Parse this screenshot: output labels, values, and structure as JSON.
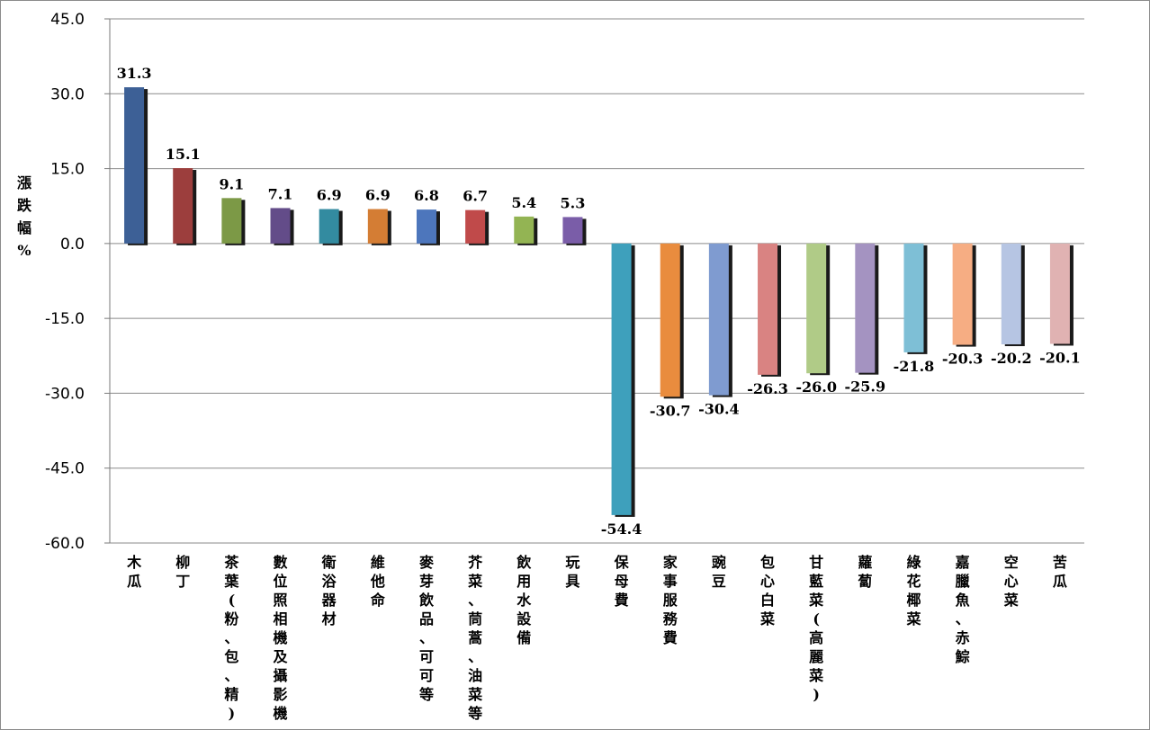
{
  "chart_data": {
    "type": "bar",
    "ylabel": "漲跌幅%",
    "xlabel": "",
    "title": "",
    "ylim": [
      -60,
      45
    ],
    "yticks": [
      45,
      30,
      15,
      0,
      -15,
      -30,
      -45,
      -60
    ],
    "ytick_labels": [
      "45.0",
      "30.0",
      "15.0",
      "0.0",
      "-15.0",
      "-30.0",
      "-45.0",
      "-60.0"
    ],
    "grid": true,
    "legend": "none",
    "categories": [
      "木瓜",
      "柳丁",
      "茶葉(粉、包、精)",
      "數位照相機及攝影機",
      "衛浴器材",
      "維他命",
      "麥芽飲品、可可等",
      "芥菜、茼蒿、油菜等",
      "飲用水設備",
      "玩具",
      "保母費",
      "家事服務費",
      "豌豆",
      "包心白菜",
      "甘藍菜(高麗菜)",
      "蘿蔔",
      "綠花椰菜",
      "嘉臘魚、赤鯮",
      "空心菜",
      "苦瓜"
    ],
    "values": [
      31.3,
      15.1,
      9.1,
      7.1,
      6.9,
      6.9,
      6.8,
      6.7,
      5.4,
      5.3,
      -54.4,
      -30.7,
      -30.4,
      -26.3,
      -26.0,
      -25.9,
      -21.8,
      -20.3,
      -20.2,
      -20.1
    ],
    "value_labels": [
      "31.3",
      "15.1",
      "9.1",
      "7.1",
      "6.9",
      "6.9",
      "6.8",
      "6.7",
      "5.4",
      "5.3",
      "-54.4",
      "-30.7",
      "-30.4",
      "-26.3",
      "-26.0",
      "-25.9",
      "-21.8",
      "-20.3",
      "-20.2",
      "-20.1"
    ],
    "colors": [
      "#3d6096",
      "#9c3e3d",
      "#7c9946",
      "#634c89",
      "#338ba0",
      "#d47d34",
      "#4d76bc",
      "#c04a4a",
      "#93b453",
      "#7a5da8",
      "#3ea0bc",
      "#e98c3e",
      "#7f9bd0",
      "#d98382",
      "#b0cb87",
      "#a493c1",
      "#7ebfd6",
      "#f6ad83",
      "#b6c5e3",
      "#e0b2b2"
    ]
  }
}
